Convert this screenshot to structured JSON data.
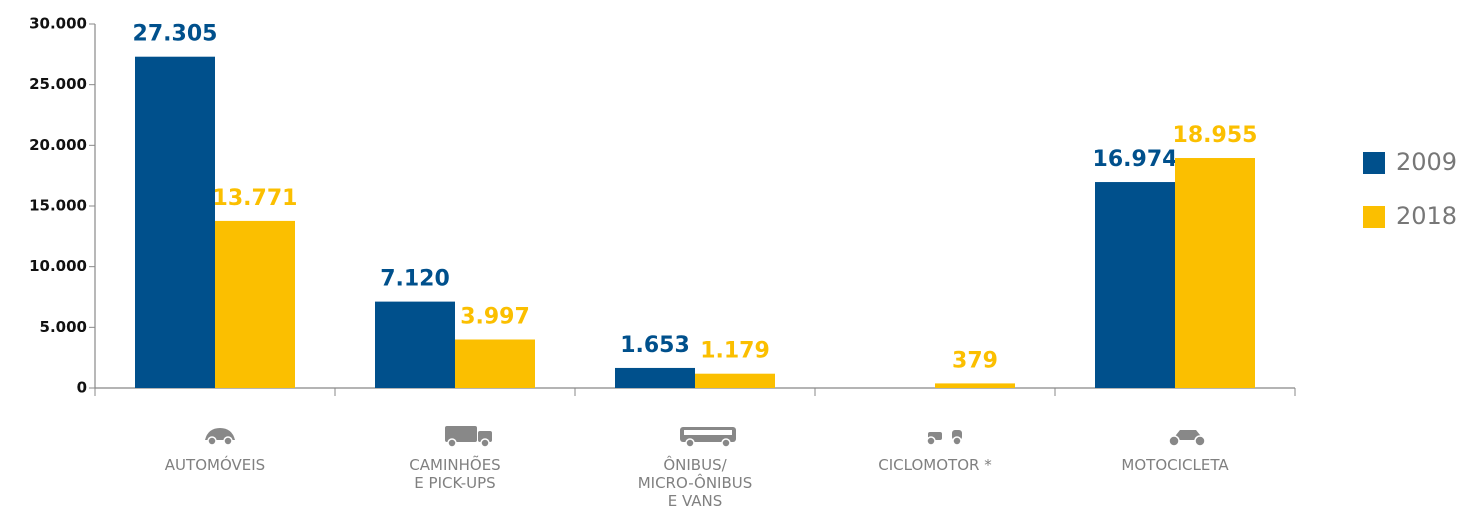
{
  "chart_data": {
    "type": "bar",
    "categories": [
      "AUTOMÓVEIS",
      "CAMINHÕES\nE PICK-UPS",
      "ÔNIBUS/\nMICRO-ÔNIBUS\nE VANS",
      "CICLOMOTOR *",
      "MOTOCICLETA"
    ],
    "series": [
      {
        "name": "2009",
        "color": "#00508c",
        "values": [
          27305,
          7120,
          1653,
          null,
          16974
        ],
        "value_labels": [
          "27.305",
          "7.120",
          "1.653",
          null,
          "16.974"
        ]
      },
      {
        "name": "2018",
        "color": "#fbbf00",
        "values": [
          13771,
          3997,
          1179,
          379,
          18955
        ],
        "value_labels": [
          "13.771",
          "3.997",
          "1.179",
          "379",
          "18.955"
        ]
      }
    ],
    "ylim": [
      0,
      30000
    ],
    "yticks": [
      0,
      {
        "value": 5000,
        "label": "5.000"
      },
      {
        "value": 10000,
        "label": "10.000"
      },
      {
        "value": 15000,
        "label": "15.000"
      },
      {
        "value": 20000,
        "label": "20.000"
      },
      {
        "value": 25000,
        "label": "25.000"
      },
      {
        "value": 30000,
        "label": "30.000"
      }
    ],
    "legend": "right"
  }
}
